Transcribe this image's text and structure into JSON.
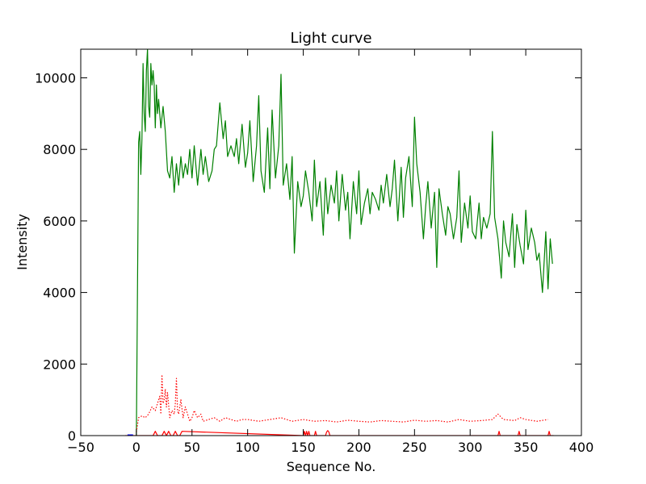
{
  "chart_data": {
    "type": "line",
    "title": "Light curve",
    "xlabel": "Sequence No.",
    "ylabel": "Intensity",
    "xlim": [
      -50,
      400
    ],
    "ylim": [
      0,
      10800
    ],
    "xticks": [
      -50,
      0,
      50,
      100,
      150,
      200,
      250,
      300,
      350,
      400
    ],
    "yticks": [
      0,
      2000,
      4000,
      6000,
      8000,
      10000
    ],
    "grid": false,
    "legend": "none",
    "series": [
      {
        "color": "#008000",
        "style": "solid",
        "x": [
          0,
          2,
          3,
          4,
          5,
          6,
          7,
          8,
          9,
          10,
          11,
          12,
          13,
          14,
          15,
          16,
          17,
          18,
          19,
          20,
          22,
          24,
          26,
          28,
          30,
          32,
          34,
          36,
          38,
          40,
          42,
          44,
          46,
          48,
          50,
          52,
          55,
          58,
          60,
          62,
          65,
          68,
          70,
          72,
          75,
          78,
          80,
          82,
          85,
          88,
          90,
          92,
          95,
          98,
          100,
          102,
          105,
          108,
          110,
          112,
          115,
          118,
          120,
          122,
          125,
          128,
          130,
          132,
          135,
          138,
          140,
          142,
          145,
          148,
          150,
          152,
          155,
          158,
          160,
          162,
          165,
          168,
          170,
          172,
          175,
          178,
          180,
          182,
          185,
          188,
          190,
          192,
          195,
          198,
          200,
          202,
          205,
          208,
          210,
          212,
          215,
          218,
          220,
          222,
          225,
          228,
          230,
          232,
          235,
          238,
          240,
          242,
          245,
          248,
          250,
          252,
          255,
          258,
          260,
          262,
          265,
          268,
          270,
          272,
          275,
          278,
          280,
          282,
          285,
          288,
          290,
          292,
          295,
          298,
          300,
          302,
          305,
          308,
          310,
          312,
          315,
          318,
          320,
          322,
          325,
          328,
          330,
          332,
          335,
          338,
          340,
          342,
          345,
          348,
          350,
          352,
          355,
          358,
          360,
          362,
          365,
          368,
          370,
          372,
          374
        ],
        "values": [
          0,
          8200,
          8500,
          7300,
          8300,
          10400,
          9000,
          8500,
          10200,
          10800,
          9200,
          8900,
          10400,
          9800,
          10200,
          9800,
          8600,
          9800,
          9000,
          9400,
          8600,
          9200,
          8500,
          7400,
          7200,
          7800,
          6800,
          7600,
          7000,
          7800,
          7200,
          7600,
          7300,
          8000,
          7200,
          8100,
          7000,
          8000,
          7300,
          7800,
          7100,
          7400,
          8000,
          8100,
          9300,
          8300,
          8800,
          7800,
          8100,
          7800,
          8300,
          7600,
          8700,
          7500,
          7900,
          8800,
          7100,
          8100,
          9500,
          7400,
          6800,
          8600,
          6900,
          9100,
          7200,
          8100,
          10100,
          7000,
          7600,
          6600,
          7800,
          5100,
          7100,
          6400,
          6700,
          7400,
          6800,
          6000,
          7700,
          6400,
          7100,
          5600,
          7200,
          6200,
          7000,
          6500,
          7400,
          6000,
          7300,
          6300,
          6800,
          5500,
          7100,
          6200,
          7400,
          5900,
          6500,
          6900,
          6200,
          6800,
          6600,
          6300,
          7000,
          6500,
          7300,
          6400,
          6900,
          7700,
          6000,
          7500,
          6100,
          7200,
          7800,
          6400,
          8900,
          7600,
          6800,
          5500,
          6400,
          7100,
          5800,
          6800,
          4700,
          6900,
          6200,
          5600,
          6400,
          6200,
          5500,
          6100,
          7400,
          5400,
          6500,
          5800,
          6700,
          5700,
          5500,
          6500,
          5500,
          6100,
          5800,
          6200,
          8500,
          6100,
          5500,
          4400,
          6000,
          5400,
          5000,
          6200,
          4700,
          5900,
          5300,
          4800,
          6300,
          5200,
          5800,
          5400,
          4900,
          5100,
          4000,
          5700,
          4100,
          5500,
          4800
        ]
      },
      {
        "color": "#ff0000",
        "style": "dotted",
        "x": [
          0,
          2,
          5,
          8,
          11,
          14,
          17,
          19,
          21,
          22,
          23,
          24,
          25,
          26,
          27,
          28,
          30,
          32,
          34,
          35,
          36,
          37,
          38,
          40,
          42,
          44,
          46,
          48,
          50,
          52,
          55,
          58,
          60,
          65,
          70,
          75,
          80,
          85,
          90,
          95,
          100,
          110,
          120,
          130,
          140,
          150,
          160,
          170,
          180,
          190,
          200,
          210,
          220,
          230,
          240,
          250,
          260,
          270,
          280,
          290,
          300,
          310,
          320,
          325,
          330,
          340,
          345,
          350,
          360,
          370
        ],
        "values": [
          100,
          500,
          550,
          500,
          600,
          800,
          700,
          900,
          1100,
          600,
          1700,
          900,
          1000,
          1300,
          800,
          1200,
          500,
          700,
          600,
          900,
          1600,
          700,
          600,
          1000,
          500,
          800,
          600,
          400,
          500,
          700,
          500,
          600,
          400,
          450,
          500,
          400,
          500,
          450,
          400,
          450,
          450,
          400,
          450,
          500,
          400,
          450,
          400,
          420,
          380,
          430,
          400,
          380,
          420,
          400,
          380,
          430,
          400,
          420,
          380,
          450,
          400,
          420,
          450,
          600,
          450,
          420,
          500,
          450,
          400,
          450
        ]
      },
      {
        "color": "#ff0000",
        "style": "solid",
        "x": [
          -10,
          0,
          15,
          17,
          19,
          23,
          25,
          27,
          29,
          31,
          33,
          35,
          37,
          39,
          41,
          150,
          151,
          152,
          153,
          154,
          155,
          156,
          160,
          161,
          162,
          170,
          171,
          172,
          173,
          174,
          325,
          326,
          327,
          343,
          344,
          345,
          370,
          371,
          372,
          375
        ],
        "values": [
          0,
          0,
          0,
          120,
          0,
          0,
          120,
          0,
          120,
          0,
          0,
          120,
          0,
          0,
          120,
          0,
          120,
          0,
          120,
          0,
          120,
          0,
          0,
          120,
          0,
          0,
          100,
          140,
          100,
          0,
          0,
          120,
          0,
          0,
          120,
          0,
          0,
          120,
          0,
          0
        ]
      },
      {
        "color": "#0000ff",
        "style": "solid",
        "x": [
          -8,
          -3
        ],
        "values": [
          0,
          0
        ]
      }
    ]
  }
}
